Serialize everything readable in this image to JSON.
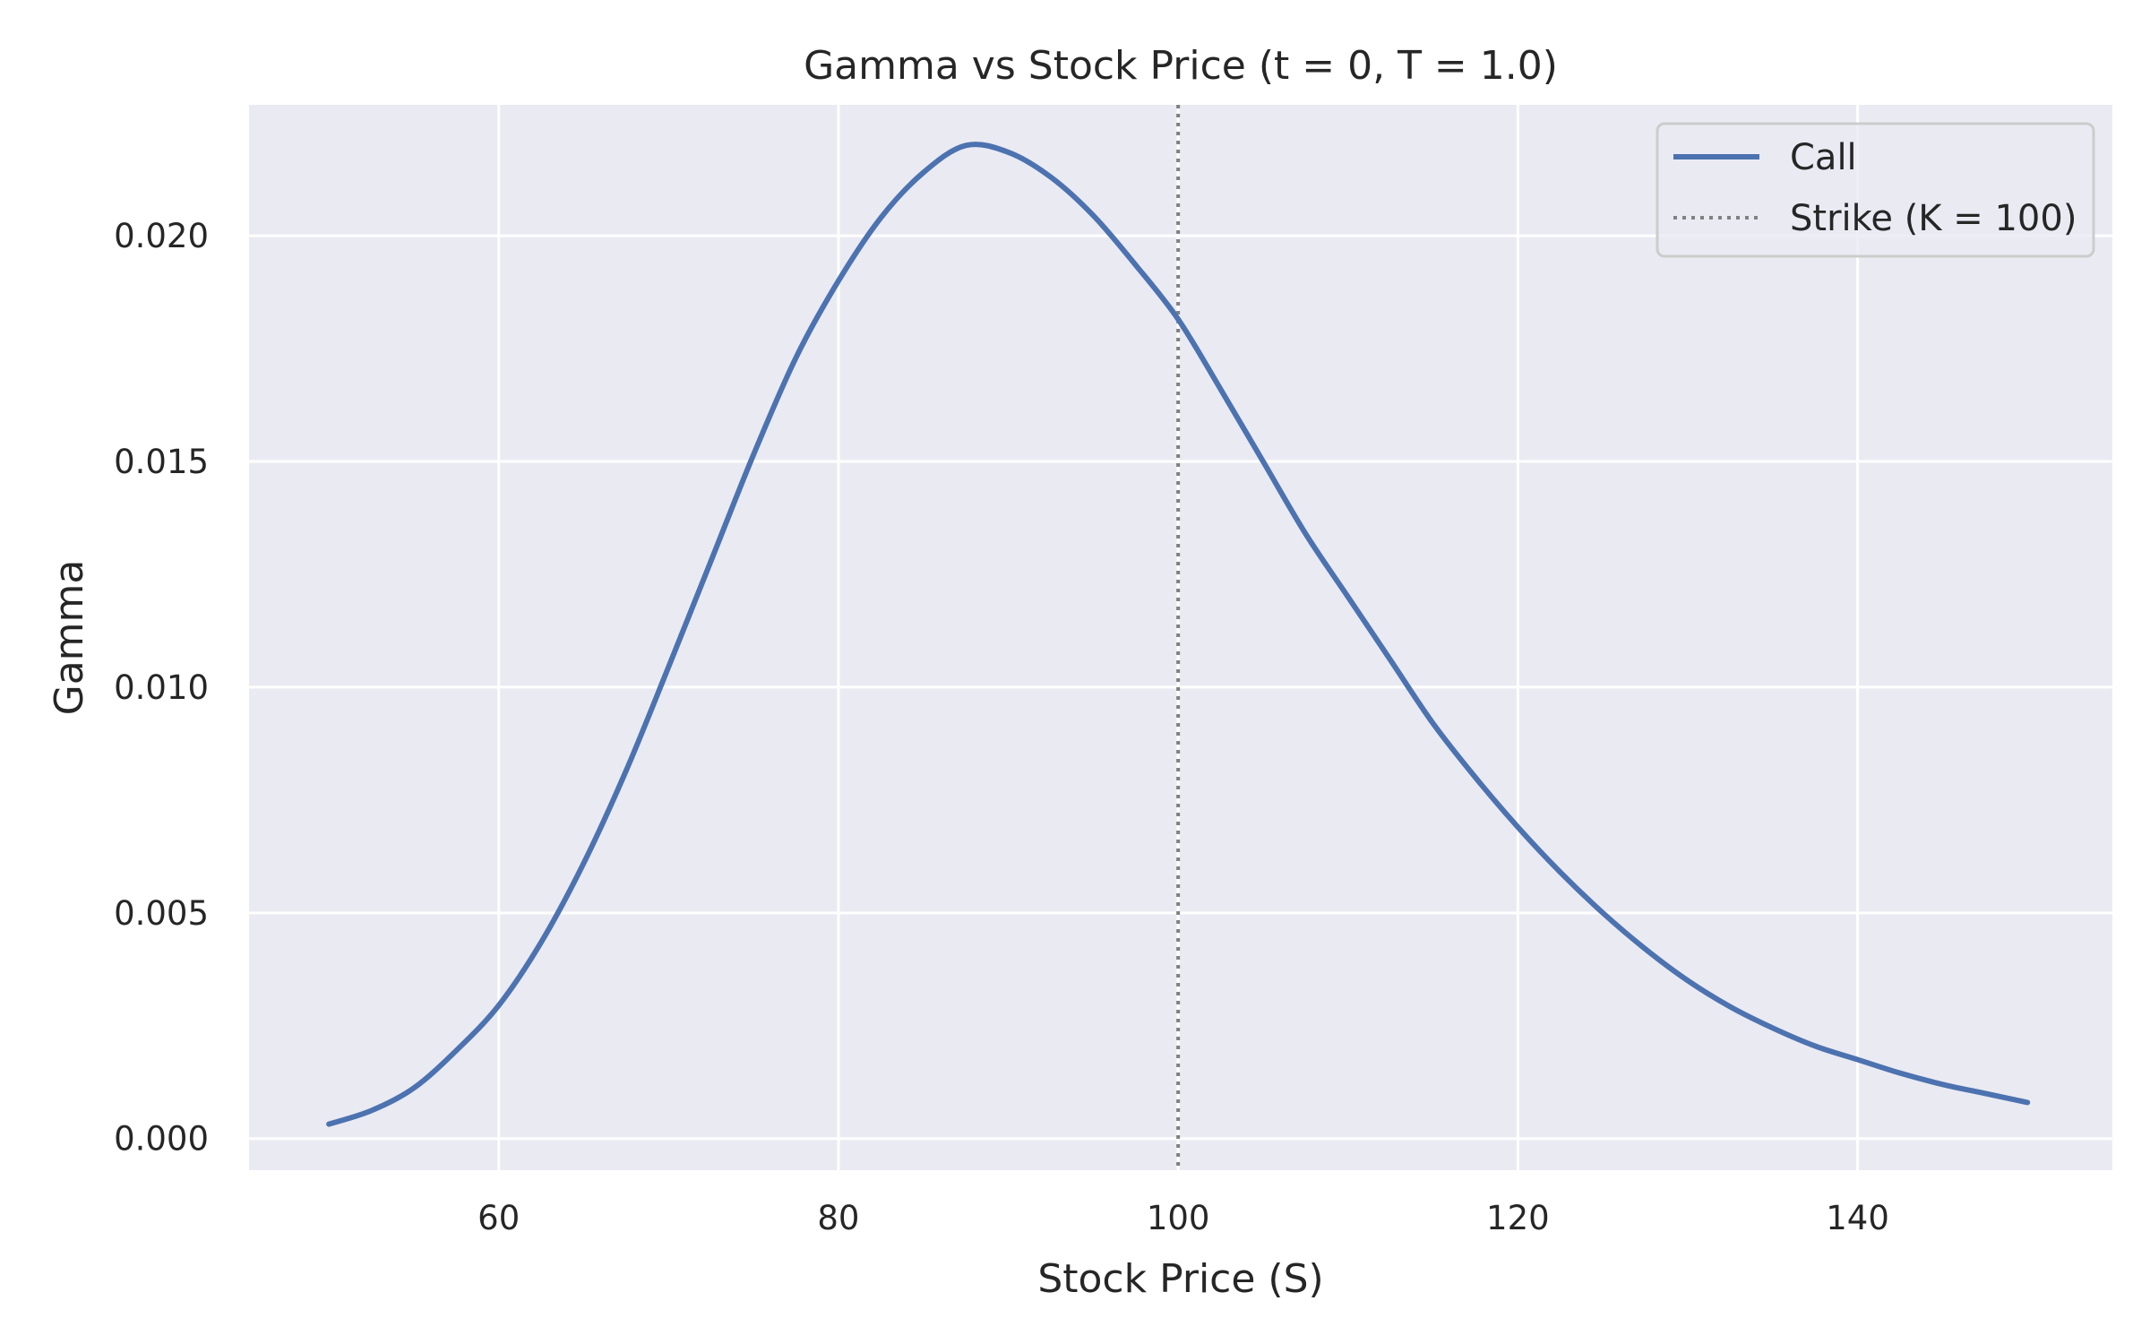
{
  "chart_data": {
    "type": "line",
    "title": "Gamma vs Stock Price (t = 0, T = 1.0)",
    "xlabel": "Stock Price (S)",
    "ylabel": "Gamma",
    "xlim": [
      45.3,
      155
    ],
    "ylim": [
      -0.0007,
      0.0229
    ],
    "xticks": [
      60,
      80,
      100,
      120,
      140
    ],
    "xtick_labels": [
      "60",
      "80",
      "100",
      "120",
      "140"
    ],
    "yticks": [
      0.0,
      0.005,
      0.01,
      0.015,
      0.02
    ],
    "ytick_labels": [
      "0.000",
      "0.005",
      "0.010",
      "0.015",
      "0.020"
    ],
    "grid": true,
    "legend_position": "top-right",
    "series": [
      {
        "name": "Call",
        "color": "#4c72b0",
        "style": "solid",
        "x": [
          50,
          52.5,
          55,
          57.5,
          60,
          62.5,
          65,
          67.5,
          70,
          72.5,
          75,
          77.5,
          80,
          82.5,
          85,
          87.5,
          90,
          92.5,
          95,
          97.5,
          100,
          102.5,
          105,
          107.5,
          110,
          112.5,
          115,
          117.5,
          120,
          122.5,
          125,
          127.5,
          130,
          132.5,
          135,
          137.5,
          140,
          142.5,
          145,
          147.5,
          150
        ],
        "y": [
          0.00032,
          0.00062,
          0.00112,
          0.00195,
          0.00295,
          0.00435,
          0.0061,
          0.00815,
          0.01045,
          0.0128,
          0.01515,
          0.0173,
          0.019,
          0.0204,
          0.0214,
          0.022,
          0.02185,
          0.0213,
          0.02045,
          0.01935,
          0.01815,
          0.0166,
          0.015,
          0.0134,
          0.012,
          0.0106,
          0.0092,
          0.008,
          0.0069,
          0.0059,
          0.005,
          0.0042,
          0.0035,
          0.00292,
          0.00245,
          0.00205,
          0.00175,
          0.00145,
          0.0012,
          0.001,
          0.0008
        ]
      }
    ],
    "vlines": [
      {
        "name": "Strike (K = 100)",
        "x": 100,
        "color": "#808080",
        "style": "dotted"
      }
    ],
    "legend": [
      {
        "label": "Call",
        "color": "#4c72b0",
        "style": "solid"
      },
      {
        "label": "Strike (K = 100)",
        "color": "#808080",
        "style": "dotted"
      }
    ],
    "colors": {
      "plot_background": "#eaeaf2",
      "grid": "#ffffff",
      "text": "#262626"
    }
  }
}
